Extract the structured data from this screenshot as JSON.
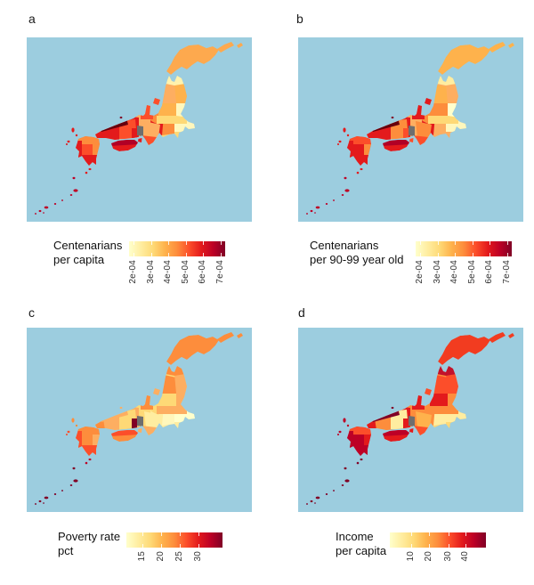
{
  "figure": {
    "background": "#ffffff",
    "type_note": "2x2 panel figure of choropleth maps of Japan with horizontal colorbar legends"
  },
  "chart_data": {
    "type": "choropleth",
    "geography": "Japan, prefecture-level regions (four map panels a-d)",
    "ocean_color": "#9CCDDF",
    "na_color": "#6E6E6E",
    "palette": [
      "#FFFFCC",
      "#FFEDA0",
      "#FED976",
      "#FEB24C",
      "#FD8D3C",
      "#FC4E2A",
      "#E31A1C",
      "#BD0026",
      "#800026"
    ],
    "palette_note": "YlOrRd sequential scale: pale yellow = low, dark maroon = high; one Kinki region shown gray (no data) in all panels",
    "legend_position": "below each map",
    "panels": [
      {
        "letter": "a",
        "variable": "Centenarians per capita",
        "legend_title_lines": [
          "Centenarians",
          "per capita"
        ],
        "ticks": [
          {
            "label": "2e-04",
            "pos": 0.05
          },
          {
            "label": "3e-04",
            "pos": 0.23
          },
          {
            "label": "4e-04",
            "pos": 0.41
          },
          {
            "label": "5e-04",
            "pos": 0.59
          },
          {
            "label": "6e-04",
            "pos": 0.77
          },
          {
            "label": "7e-04",
            "pos": 0.95
          }
        ],
        "value_scale_note": "legend range approx 1.8e-04 to 7.2e-04; western Japan high, Kanto/Tohoku low",
        "region_colors": {
          "base": "#FDAE61",
          "hokkaido": "#FDA94E",
          "aomori": "#FFF2AD",
          "iwate": "#FEB24C",
          "akita": "#FDAE61",
          "miyagi": "#FFF7BC",
          "yamagata": "#FEB24C",
          "fukushima": "#FED976",
          "niigata": "#FD8D3C",
          "sado": "#FC4E2A",
          "ishikawa": "#FC4E2A",
          "toyama-gifu": "#E31A1C",
          "nagano": "#FD8D3C",
          "kanto": "#FFF7BC",
          "tokai": "#FED976",
          "kinki-east": "#FDAE61",
          "kii": "#FC4E2A",
          "kyoto-hyogo": "#E31A1C",
          "osaka": "#E31A1C",
          "nara": "#6E6E6E",
          "chugoku-north": "#67000D",
          "okayama": "#FC4E2A",
          "hiroshima": "#E31A1C",
          "yamaguchi": "#E31A1C",
          "shikoku-north": "#B10026",
          "shikoku-south": "#E31A1C",
          "fukuoka": "#FD8D3C",
          "kumamoto": "#FC4E2A",
          "nagasaki": "#E31A1C",
          "miyazaki": "#FD8D3C",
          "kagoshima": "#E31A1C",
          "tsushima": "#E31A1C",
          "oki": "#800026",
          "awaji": "#E31A1C",
          "tanegashima": "#E31A1C",
          "okinawa": "#BD0026"
        }
      },
      {
        "letter": "b",
        "variable": "Centenarians per 90-99 year old",
        "legend_title_lines": [
          "Centenarians",
          "per 90-99 year old"
        ],
        "ticks": [
          {
            "label": "2e-04",
            "pos": 0.05
          },
          {
            "label": "3e-04",
            "pos": 0.23
          },
          {
            "label": "4e-04",
            "pos": 0.41
          },
          {
            "label": "5e-04",
            "pos": 0.59
          },
          {
            "label": "6e-04",
            "pos": 0.77
          },
          {
            "label": "7e-04",
            "pos": 0.95
          }
        ],
        "value_scale_note": "legend range approx 1.8e-04 to 7.2e-04; spatial pattern very similar to panel a",
        "region_colors": {
          "base": "#FDAE61",
          "hokkaido": "#FEB24C",
          "aomori": "#FFEDA0",
          "iwate": "#FDAE61",
          "akita": "#FEB24C",
          "miyagi": "#FFFFCC",
          "yamagata": "#FD8D3C",
          "fukushima": "#FED976",
          "niigata": "#FD8D3C",
          "sado": "#E31A1C",
          "ishikawa": "#E31A1C",
          "toyama-gifu": "#E31A1C",
          "nagano": "#FDAE61",
          "kanto": "#FFF7BC",
          "tokai": "#FDAE61",
          "kinki-east": "#FD8D3C",
          "kii": "#FC4E2A",
          "kyoto-hyogo": "#E31A1C",
          "osaka": "#FC4E2A",
          "nara": "#6E6E6E",
          "chugoku-north": "#67000D",
          "okayama": "#FD8D3C",
          "hiroshima": "#E31A1C",
          "yamaguchi": "#E31A1C",
          "shikoku-north": "#B10026",
          "shikoku-south": "#E31A1C",
          "fukuoka": "#FC4E2A",
          "kumamoto": "#E31A1C",
          "nagasaki": "#E31A1C",
          "miyazaki": "#FD8D3C",
          "kagoshima": "#E31A1C",
          "tsushima": "#E31A1C",
          "oki": "#800026",
          "awaji": "#FC4E2A",
          "tanegashima": "#E31A1C",
          "okinawa": "#BD0026"
        }
      },
      {
        "letter": "c",
        "variable": "Poverty rate pct",
        "legend_title_lines": [
          "Poverty rate",
          "pct"
        ],
        "ticks": [
          {
            "label": "15",
            "pos": 0.17
          },
          {
            "label": "20",
            "pos": 0.36
          },
          {
            "label": "25",
            "pos": 0.56
          },
          {
            "label": "30",
            "pos": 0.75
          }
        ],
        "value_scale_note": "legend range approx 13 to 36 percent; Okinawa and an Osaka-area region darkest, central Honshu palest",
        "region_colors": {
          "base": "#FED976",
          "hokkaido": "#FD8D3C",
          "aomori": "#FD8D3C",
          "iwate": "#FDAE61",
          "akita": "#FD8D3C",
          "miyagi": "#FDAE61",
          "yamagata": "#FED976",
          "fukushima": "#FDAE61",
          "niigata": "#FED976",
          "sado": "#FDAE61",
          "ishikawa": "#FD8D3C",
          "toyama-gifu": "#FFEDA0",
          "nagano": "#FFF7BC",
          "kanto": "#FFFFCC",
          "tokai": "#FFEDA0",
          "kinki-east": "#FFEDA0",
          "kii": "#FDAE61",
          "kyoto-hyogo": "#FDAE61",
          "osaka": "#800026",
          "nara": "#6E6E6E",
          "chugoku-north": "#FDAE61",
          "okayama": "#FED976",
          "hiroshima": "#FDAE61",
          "yamaguchi": "#FD8D3C",
          "shikoku-north": "#FC4E2A",
          "shikoku-south": "#FD8D3C",
          "fukuoka": "#FD8D3C",
          "kumamoto": "#FD8D3C",
          "nagasaki": "#FC4E2A",
          "miyazaki": "#FDAE61",
          "kagoshima": "#FC4E2A",
          "tsushima": "#FD8D3C",
          "oki": "#FDAE61",
          "awaji": "#FDAE61",
          "tanegashima": "#BD0026",
          "okinawa": "#800026"
        }
      },
      {
        "letter": "d",
        "variable": "Income per capita",
        "legend_title_lines": [
          "Income",
          "per capita"
        ],
        "ticks": [
          {
            "label": "10",
            "pos": 0.22
          },
          {
            "label": "20",
            "pos": 0.41
          },
          {
            "label": "30",
            "pos": 0.61
          },
          {
            "label": "40",
            "pos": 0.79
          }
        ],
        "value_scale_note": "legend range approx 5 to 47; Aomori, western Kyushu and Chugoku-north darkest, Kanto/central Honshu palest",
        "region_colors": {
          "base": "#FD8D3C",
          "hokkaido": "#F23C20",
          "aomori": "#C2122B",
          "iwate": "#FC4E2A",
          "akita": "#FC4E2A",
          "miyagi": "#FD8D3C",
          "yamagata": "#E31A1C",
          "fukushima": "#FD8D3C",
          "niigata": "#FD8D3C",
          "sado": "#FC4E2A",
          "ishikawa": "#E31A1C",
          "toyama-gifu": "#FD8D3C",
          "nagano": "#FFEDA0",
          "kanto": "#FFEDA0",
          "tokai": "#FED976",
          "kinki-east": "#FEB24C",
          "kii": "#FC4E2A",
          "kyoto-hyogo": "#E31A1C",
          "osaka": "#E31A1C",
          "nara": "#6E6E6E",
          "chugoku-north": "#800026",
          "okayama": "#FFEDA0",
          "hiroshima": "#FD8D3C",
          "yamaguchi": "#E31A1C",
          "shikoku-north": "#BD0026",
          "shikoku-south": "#E31A1C",
          "fukuoka": "#FC4E2A",
          "kumamoto": "#BD0026",
          "nagasaki": "#BD0026",
          "miyazaki": "#E31A1C",
          "kagoshima": "#BD0026",
          "tsushima": "#BD0026",
          "oki": "#800026",
          "awaji": "#E31A1C",
          "tanegashima": "#800026",
          "okinawa": "#800026"
        }
      }
    ]
  }
}
